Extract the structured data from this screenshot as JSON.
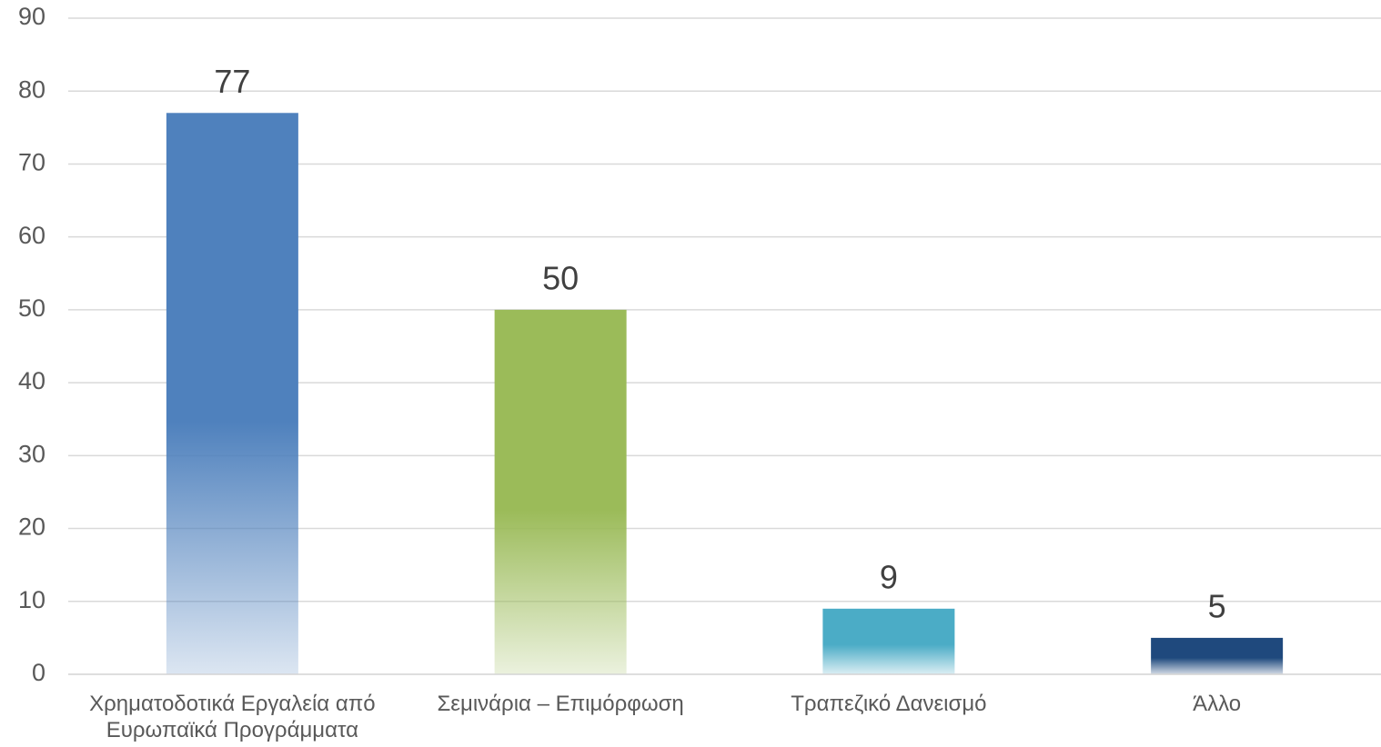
{
  "chart_data": {
    "type": "bar",
    "categories": [
      "Χρηματοδοτικά Εργαλεία από Ευρωπαϊκά Προγράμματα",
      "Σεμινάρια – Επιμόρφωση",
      "Τραπεζικό Δανεισμό",
      "Άλλο"
    ],
    "values": [
      77,
      50,
      9,
      5
    ],
    "colors": [
      "#4f81bd",
      "#9bbb59",
      "#4bacc6",
      "#1f497d"
    ],
    "ylim": [
      0,
      90
    ],
    "yticks": [
      0,
      10,
      20,
      30,
      40,
      50,
      60,
      70,
      80,
      90
    ],
    "grid": true
  }
}
